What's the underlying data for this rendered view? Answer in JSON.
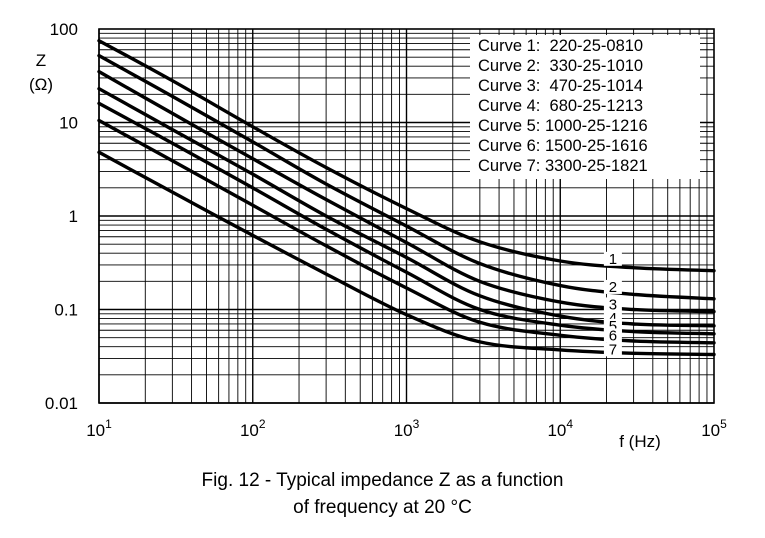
{
  "chart_data": {
    "type": "line",
    "x_scale": "log",
    "y_scale": "log",
    "xlim": [
      10,
      100000
    ],
    "ylim": [
      0.01,
      100
    ],
    "grid": true,
    "y_tick_labels": [
      "100",
      "10",
      "1",
      "0.1",
      "0.01"
    ],
    "x_tick_labels": [
      {
        "base": "10",
        "exp": "1"
      },
      {
        "base": "10",
        "exp": "2"
      },
      {
        "base": "10",
        "exp": "3"
      },
      {
        "base": "10",
        "exp": "4"
      },
      {
        "base": "10",
        "exp": "5"
      }
    ],
    "ylabel_line1": "Z",
    "ylabel_line2": "(Ω)",
    "xlabel": "f (Hz)",
    "legend": [
      "Curve 1:  220-25-0810",
      "Curve 2:  330-25-1010",
      "Curve 3:  470-25-1014",
      "Curve 4:  680-25-1213",
      "Curve 5: 1000-25-1216",
      "Curve 6: 1500-25-1616",
      "Curve 7: 3300-25-1821"
    ],
    "legend_placement": "top-right",
    "series": [
      {
        "name": "1",
        "x": [
          10,
          30,
          100,
          300,
          1000,
          3000,
          10000,
          30000,
          100000
        ],
        "values": [
          75,
          28,
          9.0,
          3.3,
          1.2,
          0.53,
          0.33,
          0.28,
          0.26
        ]
      },
      {
        "name": "2",
        "x": [
          10,
          30,
          100,
          300,
          1000,
          3000,
          10000,
          30000,
          100000
        ],
        "values": [
          52,
          19,
          6.2,
          2.2,
          0.78,
          0.31,
          0.18,
          0.145,
          0.13
        ]
      },
      {
        "name": "3",
        "x": [
          10,
          30,
          100,
          300,
          1000,
          3000,
          10000,
          30000,
          100000
        ],
        "values": [
          35,
          12.5,
          4.1,
          1.5,
          0.52,
          0.2,
          0.12,
          0.1,
          0.095
        ]
      },
      {
        "name": "4",
        "x": [
          10,
          30,
          100,
          300,
          1000,
          3000,
          10000,
          30000,
          100000
        ],
        "values": [
          23,
          8.4,
          2.8,
          1.0,
          0.36,
          0.14,
          0.085,
          0.07,
          0.067
        ]
      },
      {
        "name": "5",
        "x": [
          10,
          30,
          100,
          300,
          1000,
          3000,
          10000,
          30000,
          100000
        ],
        "values": [
          16,
          6.0,
          2.0,
          0.72,
          0.25,
          0.1,
          0.068,
          0.058,
          0.055
        ]
      },
      {
        "name": "6",
        "x": [
          10,
          30,
          100,
          300,
          1000,
          3000,
          10000,
          30000,
          100000
        ],
        "values": [
          10.5,
          3.9,
          1.3,
          0.48,
          0.17,
          0.073,
          0.053,
          0.046,
          0.044
        ]
      },
      {
        "name": "7",
        "x": [
          10,
          30,
          100,
          300,
          1000,
          3000,
          10000,
          30000,
          100000
        ],
        "values": [
          4.8,
          1.8,
          0.62,
          0.24,
          0.088,
          0.045,
          0.037,
          0.034,
          0.033
        ]
      }
    ]
  },
  "caption_line1": "Fig. 12 - Typical impedance Z as a function",
  "caption_line2": "of frequency at 20 °C"
}
